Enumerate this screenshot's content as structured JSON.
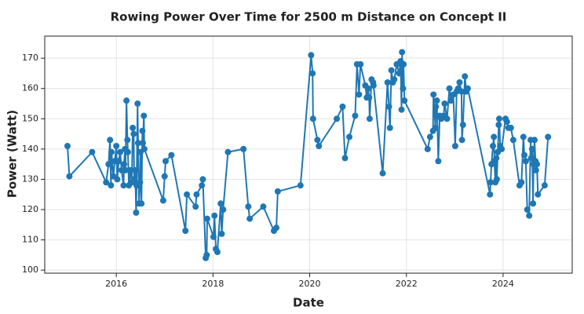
{
  "chart_data": {
    "type": "line",
    "title": "Rowing Power Over Time for 2500 m Distance on Concept II",
    "x_label": "Date",
    "y_label": "Power (Watt)",
    "color": "#1f77b4",
    "grid": true,
    "markers": true,
    "xlim": [
      2014.52,
      2025.43
    ],
    "xticks": [
      2016,
      2018,
      2020,
      2022,
      2024
    ],
    "ylim": [
      99,
      177.3
    ],
    "yticks": [
      100,
      110,
      120,
      130,
      140,
      150,
      160,
      170
    ],
    "x": [
      2014.99,
      2015.03,
      2015.5,
      2015.79,
      2015.84,
      2015.87,
      2015.89,
      2015.9,
      2015.94,
      2015.97,
      2016.0,
      2016.02,
      2016.05,
      2016.08,
      2016.11,
      2016.15,
      2016.16,
      2016.18,
      2016.19,
      2016.21,
      2016.23,
      2016.24,
      2016.26,
      2016.29,
      2016.32,
      2016.34,
      2016.36,
      2016.37,
      2016.39,
      2016.41,
      2016.42,
      2016.44,
      2016.45,
      2016.47,
      2016.49,
      2016.5,
      2016.52,
      2016.54,
      2016.55,
      2016.57,
      2016.58,
      2016.97,
      2017.0,
      2017.02,
      2017.14,
      2017.43,
      2017.46,
      2017.64,
      2017.66,
      2017.77,
      2017.79,
      2017.85,
      2017.87,
      2017.88,
      2018.01,
      2018.03,
      2018.06,
      2018.09,
      2018.16,
      2018.18,
      2018.21,
      2018.31,
      2018.63,
      2018.73,
      2018.76,
      2019.04,
      2019.26,
      2019.31,
      2019.34,
      2019.81,
      2020.03,
      2020.06,
      2020.07,
      2020.16,
      2020.19,
      2020.56,
      2020.68,
      2020.73,
      2020.82,
      2020.94,
      2020.98,
      2021.02,
      2021.05,
      2021.15,
      2021.18,
      2021.21,
      2021.23,
      2021.24,
      2021.28,
      2021.31,
      2021.32,
      2021.51,
      2021.61,
      2021.64,
      2021.66,
      2021.69,
      2021.72,
      2021.75,
      2021.8,
      2021.85,
      2021.88,
      2021.9,
      2021.91,
      2021.93,
      2021.94,
      2021.96,
      2022.44,
      2022.49,
      2022.55,
      2022.56,
      2022.6,
      2022.61,
      2022.63,
      2022.66,
      2022.69,
      2022.72,
      2022.77,
      2022.79,
      2022.84,
      2022.89,
      2022.92,
      2022.97,
      2023.01,
      2023.04,
      2023.07,
      2023.1,
      2023.14,
      2023.15,
      2023.17,
      2023.21,
      2023.24,
      2023.27,
      2023.73,
      2023.74,
      2023.76,
      2023.79,
      2023.81,
      2023.82,
      2023.84,
      2023.86,
      2023.87,
      2023.89,
      2023.91,
      2023.92,
      2023.94,
      2023.97,
      2024.05,
      2024.08,
      2024.11,
      2024.16,
      2024.21,
      2024.34,
      2024.38,
      2024.42,
      2024.44,
      2024.47,
      2024.5,
      2024.54,
      2024.57,
      2024.58,
      2024.6,
      2024.62,
      2024.63,
      2024.65,
      2024.67,
      2024.68,
      2024.7,
      2024.72,
      2024.86,
      2024.93
    ],
    "values": [
      141,
      131,
      139,
      129,
      135,
      143,
      128,
      139,
      131,
      136,
      141,
      130,
      136,
      139,
      133,
      128,
      135,
      140,
      133,
      156,
      143,
      139,
      128,
      133,
      129,
      147,
      145,
      130,
      133,
      119,
      128,
      155,
      142,
      122,
      129,
      139,
      122,
      146,
      142,
      151,
      140,
      123,
      131,
      136,
      138,
      113,
      125,
      121,
      125,
      128,
      130,
      104,
      105,
      117,
      111,
      118,
      107,
      106,
      122,
      112,
      120,
      139,
      140,
      121,
      117,
      121,
      113,
      114,
      126,
      128,
      171,
      165,
      150,
      143,
      141,
      150,
      154,
      137,
      144,
      151,
      168,
      158,
      168,
      161,
      157,
      160,
      157,
      150,
      163,
      162,
      161,
      132,
      162,
      154,
      147,
      166,
      162,
      163,
      168,
      165,
      169,
      153,
      172,
      160,
      168,
      156,
      140,
      144,
      146,
      158,
      147,
      154,
      156,
      136,
      151,
      150,
      151,
      155,
      150,
      160,
      156,
      158,
      141,
      159,
      160,
      162,
      159,
      143,
      148,
      164,
      159,
      160,
      125,
      129,
      135,
      141,
      144,
      136,
      129,
      137,
      130,
      139,
      148,
      150,
      141,
      140,
      150,
      149,
      147,
      147,
      143,
      128,
      129,
      144,
      138,
      136,
      120,
      118,
      143,
      137,
      140,
      122,
      135,
      143,
      136,
      133,
      135,
      125,
      128,
      144
    ]
  }
}
